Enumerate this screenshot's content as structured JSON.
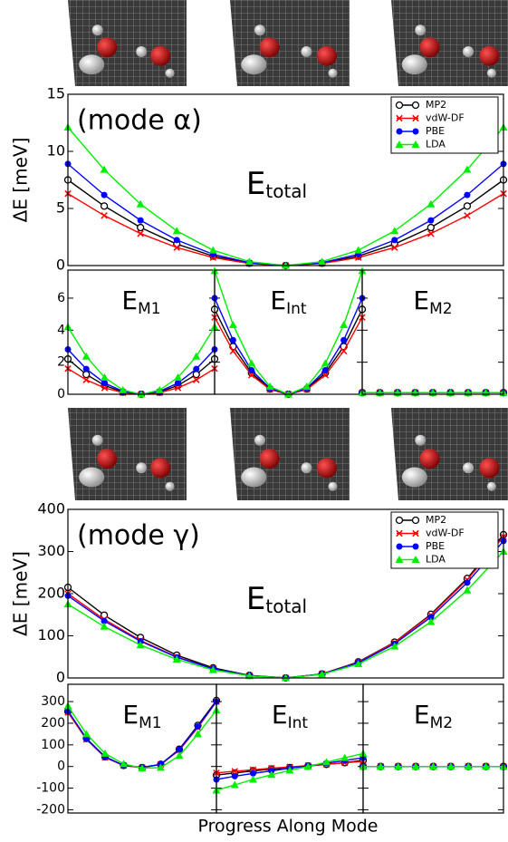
{
  "xlabel": "Progress Along Mode",
  "chart_data": [
    {
      "type": "line",
      "annotation": "(mode α)",
      "label": {
        "main": "E",
        "sub": "total"
      },
      "ylabel": "ΔE [meV]",
      "x": [
        -6,
        -5,
        -4,
        -3,
        -2,
        -1,
        0,
        1,
        2,
        3,
        4,
        5,
        6
      ],
      "xlim": [
        -6,
        6
      ],
      "ylim": [
        0,
        15
      ],
      "yticks": [
        0,
        5,
        10,
        15
      ],
      "legend": "upper right",
      "series": [
        {
          "name": "MP2",
          "color": "#000000",
          "marker": "circle-open",
          "values": [
            7.5,
            5.21,
            3.33,
            1.88,
            0.83,
            0.21,
            0,
            0.21,
            0.83,
            1.88,
            3.33,
            5.21,
            7.5
          ]
        },
        {
          "name": "vdW-DF",
          "color": "#ff0000",
          "marker": "x",
          "values": [
            6.3,
            4.38,
            2.8,
            1.58,
            0.7,
            0.18,
            0,
            0.18,
            0.7,
            1.58,
            2.8,
            4.38,
            6.3
          ]
        },
        {
          "name": "PBE",
          "color": "#0000ff",
          "marker": "circle",
          "values": [
            8.9,
            6.18,
            3.96,
            2.23,
            0.99,
            0.25,
            0,
            0.25,
            0.99,
            2.23,
            3.96,
            6.18,
            8.9
          ]
        },
        {
          "name": "LDA",
          "color": "#00ee00",
          "marker": "triangle",
          "values": [
            12.1,
            8.4,
            5.38,
            3.03,
            1.34,
            0.34,
            0,
            0.34,
            1.34,
            3.03,
            5.38,
            8.4,
            12.1
          ]
        }
      ]
    },
    {
      "type": "line",
      "label": {
        "main": "E",
        "sub": "M1"
      },
      "x": [
        -4,
        -3,
        -2,
        -1,
        0,
        1,
        2,
        3,
        4
      ],
      "xlim": [
        -4,
        4
      ],
      "ylim": [
        0,
        7.75
      ],
      "yticks": [
        0,
        2,
        4,
        6
      ],
      "series": [
        {
          "color": "#000000",
          "marker": "circle-open",
          "values": [
            2.2,
            1.24,
            0.55,
            0.14,
            0,
            0.14,
            0.55,
            1.24,
            2.2
          ]
        },
        {
          "color": "#ff0000",
          "marker": "x",
          "values": [
            1.6,
            0.9,
            0.4,
            0.1,
            0,
            0.1,
            0.4,
            0.9,
            1.6
          ]
        },
        {
          "color": "#0000ff",
          "marker": "circle",
          "values": [
            2.8,
            1.58,
            0.7,
            0.18,
            0,
            0.18,
            0.7,
            1.58,
            2.8
          ]
        },
        {
          "color": "#00ee00",
          "marker": "triangle",
          "values": [
            4.2,
            2.36,
            1.05,
            0.26,
            0,
            0.26,
            1.05,
            2.36,
            4.2
          ]
        }
      ]
    },
    {
      "type": "line",
      "label": {
        "main": "E",
        "sub": "Int"
      },
      "x": [
        -4,
        -3,
        -2,
        -1,
        0,
        1,
        2,
        3,
        4
      ],
      "xlim": [
        -4,
        4
      ],
      "ylim": [
        0,
        7.75
      ],
      "yticks": [
        0,
        2,
        4,
        6
      ],
      "ytick_labels": false,
      "series": [
        {
          "color": "#000000",
          "marker": "circle-open",
          "values": [
            5.3,
            2.98,
            1.33,
            0.33,
            0,
            0.33,
            1.33,
            2.98,
            5.3
          ]
        },
        {
          "color": "#ff0000",
          "marker": "x",
          "values": [
            4.8,
            2.7,
            1.2,
            0.3,
            0,
            0.3,
            1.2,
            2.7,
            4.8
          ]
        },
        {
          "color": "#0000ff",
          "marker": "circle",
          "values": [
            6,
            3.38,
            1.5,
            0.38,
            0,
            0.38,
            1.5,
            3.38,
            6
          ]
        },
        {
          "color": "#00ee00",
          "marker": "triangle",
          "values": [
            7.7,
            4.33,
            1.93,
            0.48,
            0,
            0.48,
            1.93,
            4.33,
            7.7
          ]
        }
      ]
    },
    {
      "type": "line",
      "label": {
        "main": "E",
        "sub": "M2"
      },
      "x": [
        -4,
        -3,
        -2,
        -1,
        0,
        1,
        2,
        3,
        4
      ],
      "xlim": [
        -4,
        4
      ],
      "ylim": [
        0,
        7.75
      ],
      "yticks": [
        0,
        2,
        4,
        6
      ],
      "ytick_labels": false,
      "series": [
        {
          "color": "#000000",
          "marker": "circle-open",
          "values": [
            0.1,
            0.1,
            0.1,
            0.1,
            0.1,
            0.1,
            0.1,
            0.1,
            0.1
          ]
        },
        {
          "color": "#ff0000",
          "marker": "x",
          "values": [
            0.1,
            0.1,
            0.1,
            0.1,
            0.1,
            0.1,
            0.1,
            0.1,
            0.1
          ]
        },
        {
          "color": "#0000ff",
          "marker": "circle",
          "values": [
            0.1,
            0.1,
            0.1,
            0.1,
            0.1,
            0.1,
            0.1,
            0.1,
            0.1
          ]
        },
        {
          "color": "#00ee00",
          "marker": "triangle",
          "values": [
            0.1,
            0.1,
            0.1,
            0.1,
            0.1,
            0.1,
            0.1,
            0.1,
            0.1
          ]
        }
      ]
    },
    {
      "type": "line",
      "annotation": "(mode γ)",
      "label": {
        "main": "E",
        "sub": "total"
      },
      "ylabel": "ΔE [meV]",
      "x": [
        -6,
        -5,
        -4,
        -3,
        -2,
        -1,
        0,
        1,
        2,
        3,
        4,
        5,
        6
      ],
      "xlim": [
        -6,
        6
      ],
      "ylim": [
        0,
        400
      ],
      "yticks": [
        0,
        100,
        200,
        300,
        400
      ],
      "legend": "upper right",
      "series": [
        {
          "name": "MP2",
          "color": "#000000",
          "marker": "circle-open",
          "values": [
            215,
            149,
            96,
            54,
            24,
            6,
            0,
            9.4,
            38,
            85,
            151,
            236,
            340
          ]
        },
        {
          "name": "vdW-DF",
          "color": "#ff0000",
          "marker": "x",
          "values": [
            200,
            139,
            89,
            50,
            22,
            5.6,
            0,
            9.3,
            37,
            84,
            149,
            233,
            335
          ]
        },
        {
          "name": "PBE",
          "color": "#0000ff",
          "marker": "circle",
          "values": [
            195,
            135,
            87,
            49,
            22,
            5.4,
            0,
            9,
            36,
            81,
            144,
            226,
            325
          ]
        },
        {
          "name": "LDA",
          "color": "#00ee00",
          "marker": "triangle",
          "values": [
            175,
            122,
            78,
            44,
            19,
            4.9,
            0,
            8.3,
            33,
            75,
            133,
            208,
            300
          ]
        }
      ]
    },
    {
      "type": "line",
      "label": {
        "main": "E",
        "sub": "M1"
      },
      "x": [
        -4,
        -3,
        -2,
        -1,
        0,
        1,
        2,
        3,
        4
      ],
      "xlim": [
        -4,
        4
      ],
      "ylim": [
        -215,
        380
      ],
      "yticks": [
        -200,
        -100,
        0,
        100,
        200,
        300
      ],
      "series": [
        {
          "color": "#000000",
          "marker": "circle-open",
          "values": [
            255,
            130,
            45,
            5,
            -5,
            10,
            80,
            190,
            305
          ]
        },
        {
          "color": "#ff0000",
          "marker": "x",
          "values": [
            250,
            125,
            42,
            4,
            -5,
            9,
            75,
            180,
            300
          ]
        },
        {
          "color": "#0000ff",
          "marker": "circle",
          "values": [
            258,
            128,
            44,
            5,
            -4,
            10,
            78,
            185,
            300
          ]
        },
        {
          "color": "#00ee00",
          "marker": "triangle",
          "values": [
            280,
            150,
            60,
            12,
            -8,
            -5,
            50,
            150,
            260
          ]
        }
      ]
    },
    {
      "type": "line",
      "label": {
        "main": "E",
        "sub": "Int"
      },
      "x": [
        -4,
        -3,
        -2,
        -1,
        0,
        1,
        2,
        3,
        4
      ],
      "xlim": [
        -4,
        4
      ],
      "ylim": [
        -215,
        380
      ],
      "yticks": [
        -200,
        -100,
        0,
        100,
        200,
        300
      ],
      "ytick_labels": false,
      "series": [
        {
          "color": "#000000",
          "marker": "circle-open",
          "values": [
            -40,
            -30,
            -20,
            -12,
            -5,
            2,
            10,
            18,
            28
          ]
        },
        {
          "color": "#ff0000",
          "marker": "x",
          "values": [
            -30,
            -22,
            -15,
            -8,
            -2,
            4,
            10,
            17,
            24
          ]
        },
        {
          "color": "#0000ff",
          "marker": "circle",
          "values": [
            -60,
            -45,
            -32,
            -20,
            -8,
            3,
            15,
            28,
            40
          ]
        },
        {
          "color": "#00ee00",
          "marker": "triangle",
          "values": [
            -110,
            -85,
            -60,
            -38,
            -18,
            0,
            20,
            40,
            60
          ]
        }
      ]
    },
    {
      "type": "line",
      "label": {
        "main": "E",
        "sub": "M2"
      },
      "x": [
        -4,
        -3,
        -2,
        -1,
        0,
        1,
        2,
        3,
        4
      ],
      "xlim": [
        -4,
        4
      ],
      "ylim": [
        -215,
        380
      ],
      "yticks": [
        -200,
        -100,
        0,
        100,
        200,
        300
      ],
      "ytick_labels": false,
      "series": [
        {
          "color": "#000000",
          "marker": "circle-open",
          "values": [
            0,
            0,
            0,
            0,
            0,
            0,
            0,
            0,
            0
          ]
        },
        {
          "color": "#ff0000",
          "marker": "x",
          "values": [
            0,
            0,
            0,
            0,
            0,
            0,
            0,
            0,
            0
          ]
        },
        {
          "color": "#0000ff",
          "marker": "circle",
          "values": [
            0,
            0,
            0,
            0,
            0,
            0,
            0,
            0,
            0
          ]
        },
        {
          "color": "#00ee00",
          "marker": "triangle",
          "values": [
            0,
            0,
            0,
            0,
            0,
            0,
            0,
            0,
            0
          ]
        }
      ]
    }
  ]
}
